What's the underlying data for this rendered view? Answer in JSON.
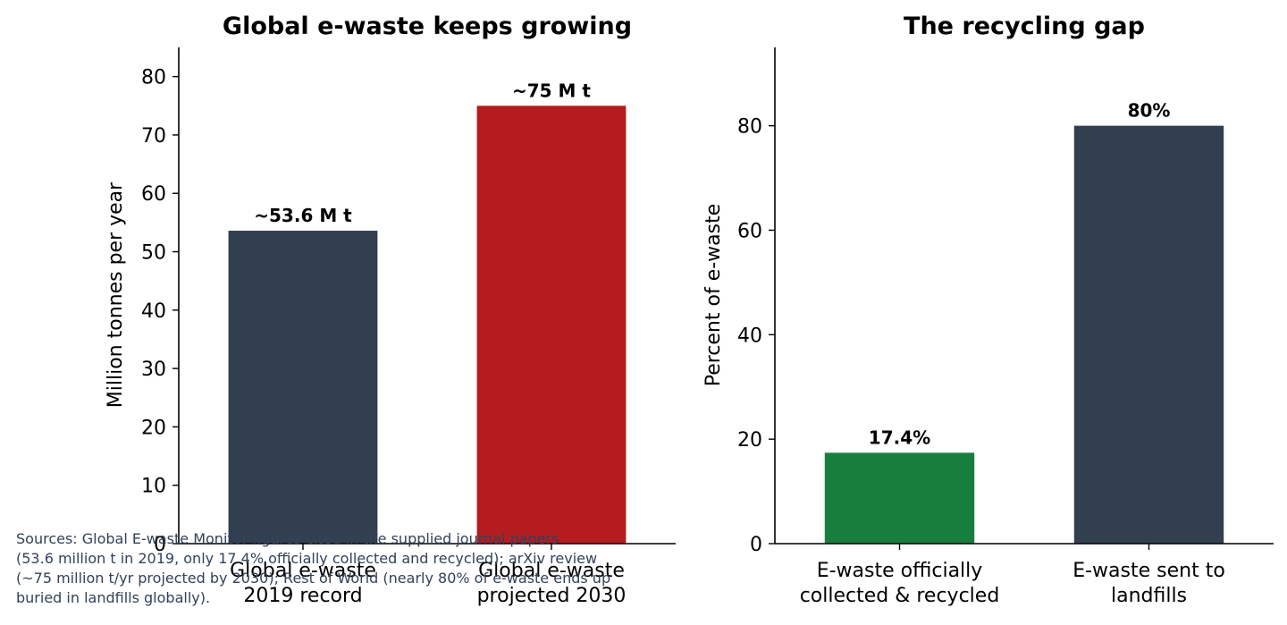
{
  "colors": {
    "navy": "#323f51",
    "red": "#b51c1f",
    "green": "#177f3e",
    "axis": "#000000",
    "sources_text": "#33415a"
  },
  "sources_lines": [
    "Sources: Global E-waste Monitor figures cited in the supplied journal papers",
    "(53.6 million t in 2019, only 17.4% officially collected and recycled); arXiv review",
    "(~75 million t/yr projected by 2030); Rest of World (nearly 80% of e-waste ends up",
    "buried in landfills globally)."
  ],
  "chart_data": [
    {
      "type": "bar",
      "title": "Global e-waste keeps growing",
      "xlabel": "",
      "ylabel": "Million tonnes per year",
      "ylim": [
        0,
        85
      ],
      "yticks": [
        "0",
        "10",
        "20",
        "30",
        "40",
        "50",
        "60",
        "70",
        "80"
      ],
      "categories": [
        [
          "Global e-waste",
          "2019 record"
        ],
        [
          "Global e-waste",
          "projected 2030"
        ]
      ],
      "values": [
        53.6,
        75
      ],
      "data_labels": [
        "~53.6 M t",
        "~75 M t"
      ],
      "bar_colors": [
        "#323f51",
        "#b51c1f"
      ],
      "grid": false
    },
    {
      "type": "bar",
      "title": "The recycling gap",
      "xlabel": "",
      "ylabel": "Percent of e-waste",
      "ylim": [
        0,
        95
      ],
      "yticks": [
        "0",
        "20",
        "40",
        "60",
        "80"
      ],
      "categories": [
        [
          "E-waste officially",
          "collected & recycled"
        ],
        [
          "E-waste sent to",
          "landfills"
        ]
      ],
      "values": [
        17.4,
        80
      ],
      "data_labels": [
        "17.4%",
        "80%"
      ],
      "bar_colors": [
        "#177f3e",
        "#323f51"
      ],
      "grid": false
    }
  ]
}
